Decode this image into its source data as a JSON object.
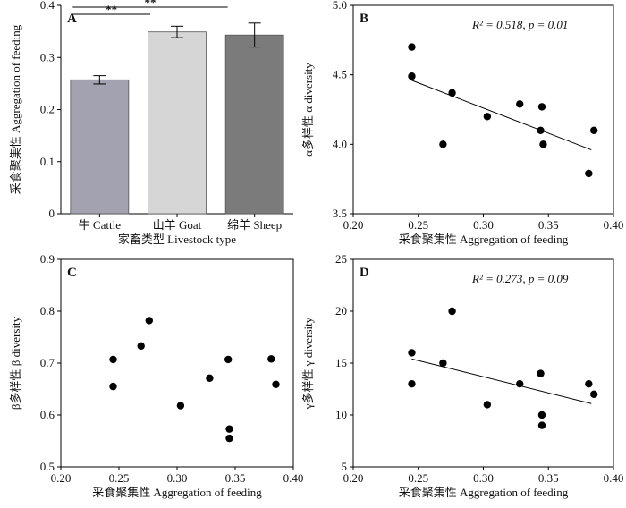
{
  "chart_data": [
    {
      "id": "A",
      "type": "bar",
      "panel_label": "A",
      "categories": [
        "牛 Cattle",
        "山羊 Goat",
        "绵羊 Sheep"
      ],
      "values": [
        0.257,
        0.349,
        0.343
      ],
      "errors": [
        0.008,
        0.011,
        0.023
      ],
      "bar_colors": [
        "#a3a2b0",
        "#d6d6d6",
        "#7b7b7b"
      ],
      "xlabel": "家畜类型 Livestock type",
      "ylabel": "采食聚集性 Aggregation of feeding",
      "ylim": [
        0,
        0.4
      ],
      "yticks": [
        0,
        0.1,
        0.2,
        0.3,
        0.4
      ],
      "ytick_labels": [
        "0",
        "0.1",
        "0.2",
        "0.3",
        "0.4"
      ],
      "significance": [
        {
          "from": 0,
          "to": 1,
          "label": "**"
        },
        {
          "from": 0,
          "to": 2,
          "label": "**"
        }
      ]
    },
    {
      "id": "B",
      "type": "scatter",
      "panel_label": "B",
      "x": [
        0.245,
        0.245,
        0.269,
        0.276,
        0.303,
        0.328,
        0.344,
        0.345,
        0.346,
        0.381,
        0.385
      ],
      "y": [
        4.7,
        4.49,
        4.0,
        4.37,
        4.2,
        4.29,
        4.1,
        4.27,
        4.0,
        3.79,
        4.1
      ],
      "trend": {
        "x": [
          0.245,
          0.383
        ],
        "y": [
          4.46,
          3.96
        ]
      },
      "stat_text": "R² = 0.518, p = 0.01",
      "xlabel": "采食聚集性 Aggregation of feeding",
      "ylabel": "α多样性 α diversity",
      "xlim": [
        0.2,
        0.4
      ],
      "ylim": [
        3.5,
        5.0
      ],
      "xticks": [
        0.2,
        0.25,
        0.3,
        0.35,
        0.4
      ],
      "xtick_labels": [
        "0.20",
        "0.25",
        "0.30",
        "0.35",
        "0.40"
      ],
      "yticks": [
        3.5,
        4.0,
        4.5,
        5.0
      ],
      "ytick_labels": [
        "3.5",
        "4.0",
        "4.5",
        "5.0"
      ]
    },
    {
      "id": "C",
      "type": "scatter",
      "panel_label": "C",
      "x": [
        0.245,
        0.245,
        0.269,
        0.276,
        0.303,
        0.328,
        0.344,
        0.345,
        0.345,
        0.381,
        0.385
      ],
      "y": [
        0.707,
        0.655,
        0.733,
        0.782,
        0.618,
        0.671,
        0.707,
        0.573,
        0.555,
        0.708,
        0.659
      ],
      "xlabel": "采食聚集性 Aggregation of feeding",
      "ylabel": "β多样性 β diversity",
      "xlim": [
        0.2,
        0.4
      ],
      "ylim": [
        0.5,
        0.9
      ],
      "xticks": [
        0.2,
        0.25,
        0.3,
        0.35,
        0.4
      ],
      "xtick_labels": [
        "0.20",
        "0.25",
        "0.30",
        "0.35",
        "0.40"
      ],
      "yticks": [
        0.5,
        0.6,
        0.7,
        0.8,
        0.9
      ],
      "ytick_labels": [
        "0.5",
        "0.6",
        "0.7",
        "0.8",
        "0.9"
      ]
    },
    {
      "id": "D",
      "type": "scatter",
      "panel_label": "D",
      "x": [
        0.245,
        0.245,
        0.269,
        0.276,
        0.303,
        0.328,
        0.344,
        0.345,
        0.345,
        0.381,
        0.385
      ],
      "y": [
        16,
        13,
        15,
        20,
        11,
        13,
        14,
        10,
        9,
        13,
        12
      ],
      "trend": {
        "x": [
          0.245,
          0.383
        ],
        "y": [
          15.4,
          11.1
        ]
      },
      "stat_text": "R² = 0.273, p = 0.09",
      "xlabel": "采食聚集性 Aggregation of feeding",
      "ylabel": "γ多样性 γ diversity",
      "xlim": [
        0.2,
        0.4
      ],
      "ylim": [
        5,
        25
      ],
      "xticks": [
        0.2,
        0.25,
        0.3,
        0.35,
        0.4
      ],
      "xtick_labels": [
        "0.20",
        "0.25",
        "0.30",
        "0.35",
        "0.40"
      ],
      "yticks": [
        5,
        10,
        15,
        20,
        25
      ],
      "ytick_labels": [
        "5",
        "10",
        "15",
        "20",
        "25"
      ]
    }
  ]
}
